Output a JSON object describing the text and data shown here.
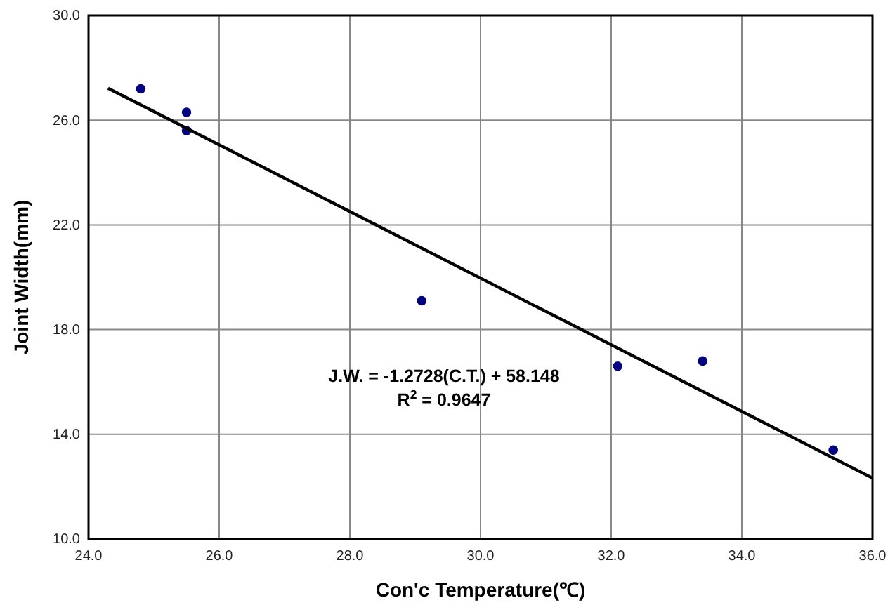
{
  "chart_data": {
    "type": "scatter",
    "xlabel": "Con'c Temperature(℃)",
    "ylabel": "Joint Width(mm)",
    "series": [
      {
        "marker": "circle",
        "color": "#000080",
        "x": [
          24.8,
          25.5,
          25.5,
          29.1,
          32.1,
          33.4,
          35.4
        ],
        "values": [
          27.2,
          26.3,
          25.6,
          19.1,
          16.6,
          16.8,
          13.4
        ]
      },
      {
        "type": "line",
        "marker": "none",
        "color": "#000000",
        "x": [
          24.3,
          36
        ],
        "values": [
          27.22,
          12.33
        ]
      }
    ],
    "annotations": [
      "J.W. = -1.2728(C.T.) + 58.148",
      "R$^{2}$ = 0.9647"
    ],
    "xlim": [
      24,
      36
    ],
    "ylim": [
      10,
      30
    ],
    "xticks": [
      {
        "value": 24,
        "label": "24.0"
      },
      {
        "value": 26,
        "label": "26.0"
      },
      {
        "value": 28,
        "label": "28.0"
      },
      {
        "value": 30,
        "label": "30.0"
      },
      {
        "value": 32,
        "label": "32.0"
      },
      {
        "value": 34,
        "label": "34.0"
      },
      {
        "value": 36,
        "label": "36.0"
      }
    ],
    "yticks": [
      {
        "value": 10,
        "label": "10.0"
      },
      {
        "value": 14,
        "label": "14.0"
      },
      {
        "value": 18,
        "label": "18.0"
      },
      {
        "value": 22,
        "label": "22.0"
      },
      {
        "value": 26,
        "label": "26.0"
      },
      {
        "value": 30,
        "label": "30.0"
      }
    ],
    "grid": true
  }
}
